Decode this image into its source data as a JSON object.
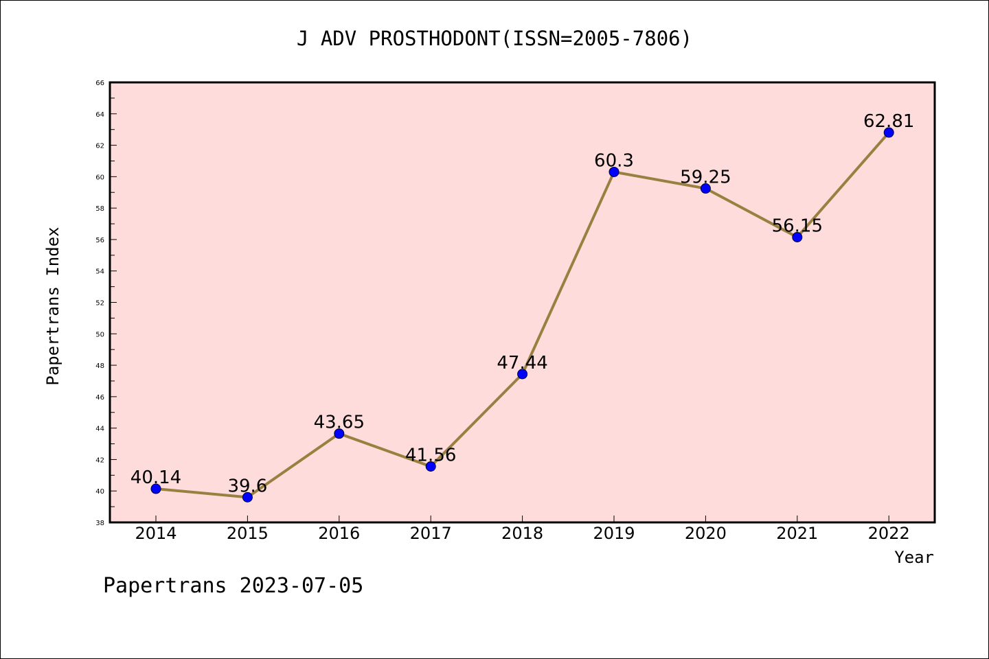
{
  "chart_data": {
    "type": "line",
    "title": "J ADV PROSTHODONT(ISSN=2005-7806)",
    "xlabel": "Year",
    "ylabel": "Papertrans Index",
    "categories": [
      "2014",
      "2015",
      "2016",
      "2017",
      "2018",
      "2019",
      "2020",
      "2021",
      "2022"
    ],
    "series": [
      {
        "values": [
          40.14,
          39.6,
          43.65,
          41.56,
          47.44,
          60.3,
          59.25,
          56.15,
          62.81
        ],
        "labels": [
          "40.14",
          "39.6",
          "43.65",
          "41.56",
          "47.44",
          "60.3",
          "59.25",
          "56.15",
          "62.81"
        ]
      }
    ],
    "ylim": [
      38,
      66
    ],
    "yticks": [
      "38",
      "40",
      "42",
      "44",
      "46",
      "48",
      "50",
      "52",
      "54",
      "56",
      "58",
      "60",
      "62",
      "64",
      "66"
    ],
    "grid": false,
    "colors": {
      "plot_background": "#ffdcdc",
      "line": "#9a8040",
      "marker": "#0000ff"
    }
  },
  "footer": "Papertrans 2023-07-05"
}
